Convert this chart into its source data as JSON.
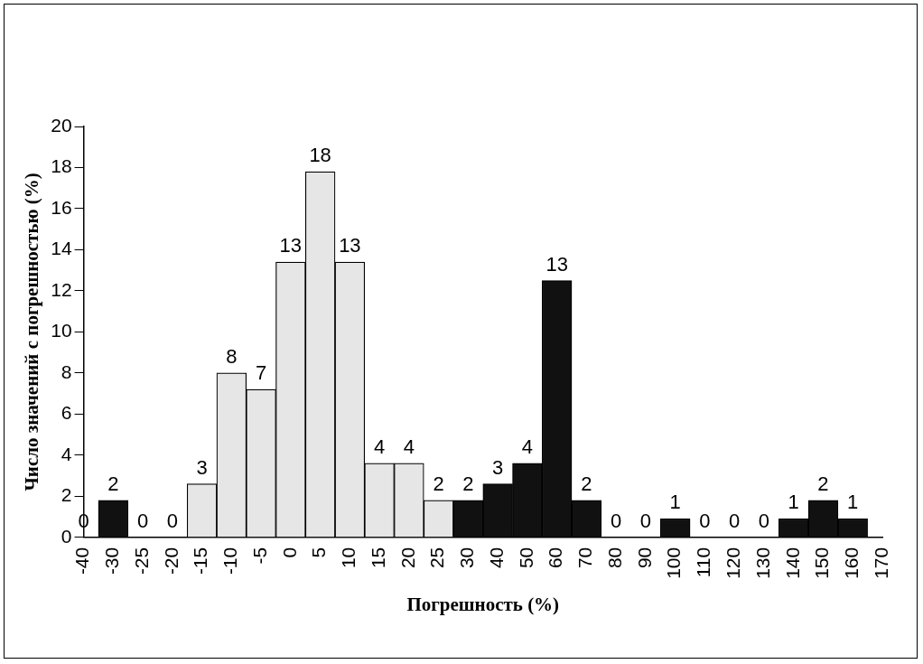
{
  "chart_data": {
    "type": "bar",
    "xlabel": "Погрешность (%)",
    "ylabel": "Число значений с погрешностью (%)",
    "categories": [
      "-40",
      "-30",
      "-25",
      "-20",
      "-15",
      "-10",
      "-5",
      "0",
      "5",
      "10",
      "15",
      "20",
      "25",
      "30",
      "40",
      "50",
      "60",
      "70",
      "80",
      "90",
      "100",
      "110",
      "120",
      "130",
      "140",
      "150",
      "160",
      "170"
    ],
    "values": [
      0,
      1.8,
      0,
      0,
      2.6,
      8,
      7.2,
      13.4,
      17.8,
      13.4,
      3.6,
      3.6,
      1.8,
      1.8,
      2.6,
      3.6,
      12.5,
      1.8,
      0,
      0,
      0.9,
      0,
      0,
      0,
      0.9,
      1.8,
      0.9,
      null
    ],
    "value_labels": [
      "0",
      "2",
      "0",
      "0",
      "3",
      "8",
      "7",
      "13",
      "18",
      "13",
      "4",
      "4",
      "2",
      "2",
      "3",
      "4",
      "13",
      "2",
      "0",
      "0",
      "1",
      "0",
      "0",
      "0",
      "1",
      "2",
      "1",
      null
    ],
    "colors": [
      "#111111",
      "#111111",
      "#111111",
      "#111111",
      "#e6e6e6",
      "#e6e6e6",
      "#e6e6e6",
      "#e6e6e6",
      "#e6e6e6",
      "#e6e6e6",
      "#e6e6e6",
      "#e6e6e6",
      "#e6e6e6",
      "#111111",
      "#111111",
      "#111111",
      "#111111",
      "#111111",
      "#111111",
      "#111111",
      "#111111",
      "#111111",
      "#111111",
      "#111111",
      "#111111",
      "#111111",
      "#111111",
      "#111111"
    ],
    "ylim": [
      0,
      20
    ],
    "yticks": [
      0,
      2,
      4,
      6,
      8,
      10,
      12,
      14,
      16,
      18,
      20
    ],
    "grid": false,
    "legend": false
  }
}
